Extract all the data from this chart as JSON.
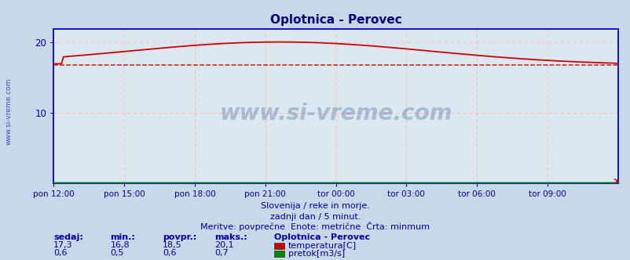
{
  "title": "Oplotnica - Perovec",
  "title_color": "#000080",
  "plot_bg_color": "#dce8f0",
  "outer_bg_color": "#c8d8e8",
  "xlim": [
    0,
    288
  ],
  "ylim": [
    0,
    22
  ],
  "yticks": [
    10,
    20
  ],
  "xtick_labels": [
    "pon 12:00",
    "pon 15:00",
    "pon 18:00",
    "pon 21:00",
    "tor 00:00",
    "tor 03:00",
    "tor 06:00",
    "tor 09:00"
  ],
  "xtick_positions": [
    0,
    36,
    72,
    108,
    144,
    180,
    216,
    252
  ],
  "temp_min": 16.8,
  "temp_max": 20.1,
  "temp_avg": 18.5,
  "temp_current": 17.3,
  "flow_min": 0.5,
  "flow_max": 0.7,
  "flow_avg": 0.6,
  "flow_current": 0.6,
  "temp_line_color": "#cc0000",
  "temp_dashed_color": "#cc0000",
  "flow_line_color": "#008800",
  "grid_color": "#ffbbbb",
  "axis_color": "#0000cc",
  "text_color": "#0000aa",
  "watermark": "www.si-vreme.com",
  "watermark_color": "#1a4a8a",
  "footer_line1": "Slovenija / reke in morje.",
  "footer_line2": "zadnji dan / 5 minut.",
  "footer_line3": "Meritve: povprečne  Enote: metrične  Črta: minmum",
  "legend_title": "Oplotnica - Perovec",
  "legend_items": [
    "temperatura[C]",
    "pretok[m3/s]"
  ],
  "legend_colors": [
    "#cc0000",
    "#008800"
  ],
  "stat_headers": [
    "sedaj:",
    "min.:",
    "povpr.:",
    "maks.:"
  ],
  "stat_temp": [
    "17,3",
    "16,8",
    "18,5",
    "20,1"
  ],
  "stat_flow": [
    "0,6",
    "0,5",
    "0,6",
    "0,7"
  ]
}
